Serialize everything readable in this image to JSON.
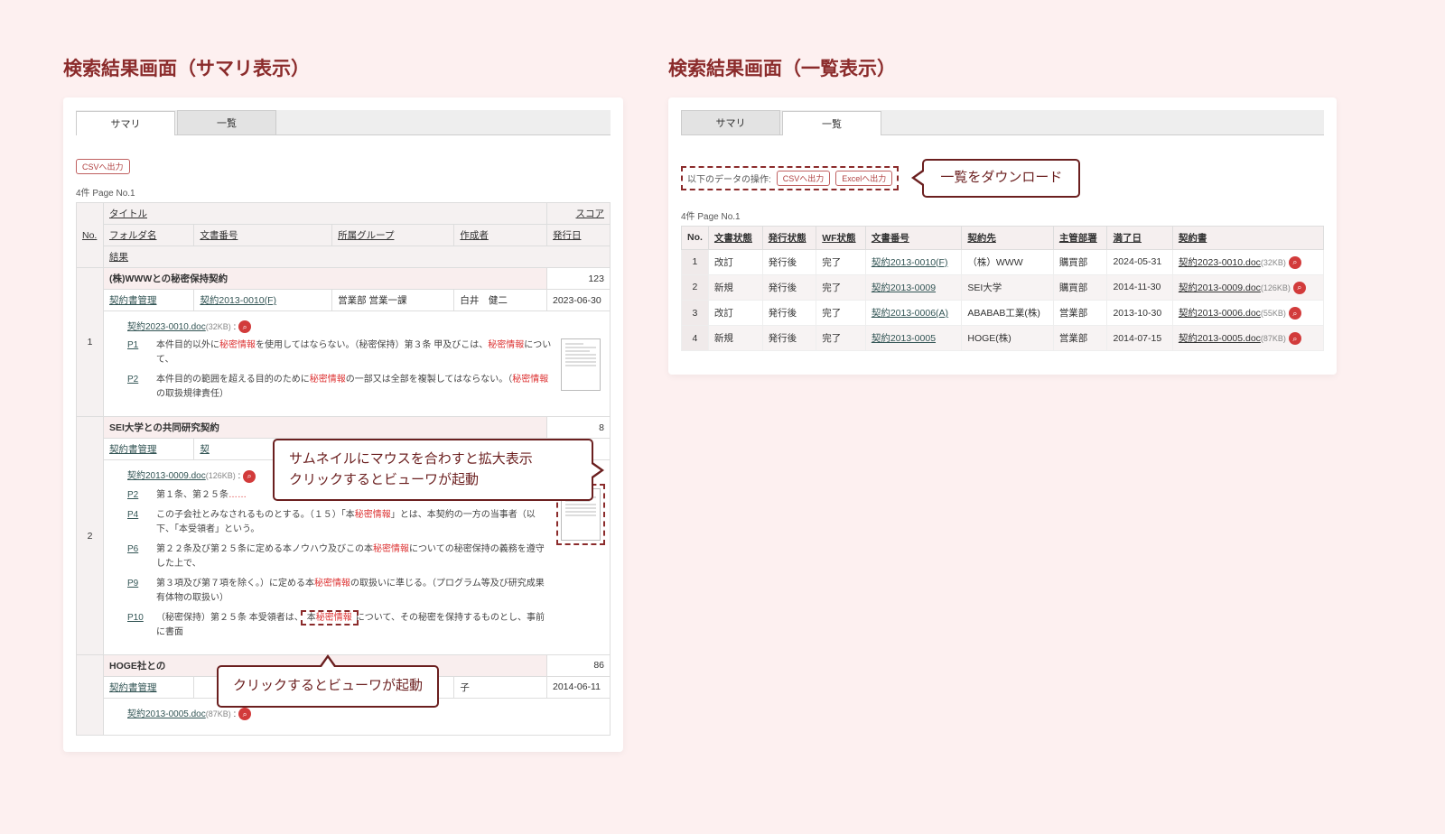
{
  "colors": {
    "page_bg": "#fdf0f0",
    "heading": "#8b2b2b",
    "callout_border": "#6b1f1f",
    "highlight": "#d33",
    "magnifier_bg": "#d23b3b",
    "button_border": "#c06060"
  },
  "left": {
    "heading": "検索結果画面（サマリ表示）",
    "tabs": {
      "summary": "サマリ",
      "list": "一覧",
      "active": "summary"
    },
    "btn_csv": "CSVへ出力",
    "pageinfo": "4件 Page No.1",
    "header_row1": {
      "no": "No.",
      "title": "タイトル",
      "score": "スコア"
    },
    "header_row2": {
      "folder": "フォルダ名",
      "docno": "文書番号",
      "group": "所属グループ",
      "creator": "作成者",
      "issuedate": "発行日"
    },
    "header_row3": {
      "result": "結果"
    },
    "items": [
      {
        "no": "1",
        "title": "(株)WWWとの秘密保持契約",
        "score": 123,
        "folder": "契約書管理",
        "docno": "契約2013-0010(F)",
        "group": "営業部 営業一課",
        "creator": "白井　健二",
        "issuedate": "2023-06-30",
        "file": "契約2023-0010.doc",
        "filesize": "(32KB)",
        "snips": [
          {
            "pg": "P1",
            "html": "本件目的以外に<span class='hl'>秘密情報</span>を使用してはならない。（秘密保持）第３条 甲及びこは、<span class='hl'>秘密情報</span>について、"
          },
          {
            "pg": "P2",
            "html": "本件目的の範囲を超える目的のために<span class='hl'>秘密情報</span>の一部又は全部を複製してはならない。（<span class='hl'>秘密情報</span>の取扱規律責任）"
          }
        ],
        "thumb_dashed": false
      },
      {
        "no": "2",
        "title": "SEI大学との共同研究契約",
        "score": "8",
        "folder": "契約書管理",
        "docno": "契",
        "group": "",
        "creator": "",
        "issuedate": "1",
        "file": "契約2013-0009.doc",
        "filesize": "(126KB)",
        "snips": [
          {
            "pg": "P2",
            "html": "第１条、第２５条<span class='hl'>……</span>"
          },
          {
            "pg": "P4",
            "html": "この子会社とみなされるものとする。（１５）「本<span class='hl'>秘密情報</span>」とは、本契約の一方の当事者（以下、「本受領者」という。"
          },
          {
            "pg": "P6",
            "html": "第２２条及び第２５条に定める本ノウハウ及びこの本<span class='hl'>秘密情報</span>についての秘密保持の義務を遵守した上で、"
          },
          {
            "pg": "P9",
            "html": "第３項及び第７項を除く。）に定める本<span class='hl'>秘密情報</span>の取扱いに準じる。（プログラム等及び研究成果有体物の取扱い）"
          },
          {
            "pg": "P10",
            "html": "（秘密保持）第２５条 本受領者は、<span class='mini-dashed'>本<span class='hl'>秘密情報</span></span>について、その秘密を保持するものとし、事前に書面"
          }
        ],
        "thumb_dashed": true
      },
      {
        "no_row": true,
        "title": "HOGE社との",
        "score": 86,
        "folder": "契約書管理",
        "creator": "子",
        "issuedate": "2014-06-11",
        "file": "契約2013-0005.doc",
        "filesize": "(87KB)"
      }
    ],
    "callout_thumb": "サムネイルにマウスを合わすと拡大表示\nクリックするとビューワが起動",
    "callout_viewer": "クリックするとビューワが起動"
  },
  "right": {
    "heading": "検索結果画面（一覧表示）",
    "tabs": {
      "summary": "サマリ",
      "list": "一覧",
      "active": "list"
    },
    "toolbar_prefix": "以下のデータの操作:",
    "btn_csv": "CSVへ出力",
    "btn_excel": "Excelへ出力",
    "callout_download": "一覧をダウンロード",
    "pageinfo": "4件 Page No.1",
    "columns": {
      "no": "No.",
      "doc_status": "文書状態",
      "issue_status": "発行状態",
      "wf_status": "WF状態",
      "docno": "文書番号",
      "partner": "契約先",
      "dept": "主管部署",
      "due": "満了日",
      "contract_doc": "契約書"
    },
    "rows": [
      {
        "no": 1,
        "doc_status": "改訂",
        "issue_status": "発行後",
        "wf_status": "完了",
        "docno": "契約2013-0010(F)",
        "partner": "（株）WWW",
        "dept": "購買部",
        "due": "2024-05-31",
        "doc": "契約2023-0010.doc",
        "size": "(32KB)"
      },
      {
        "no": 2,
        "doc_status": "新規",
        "issue_status": "発行後",
        "wf_status": "完了",
        "docno": "契約2013-0009",
        "partner": "SEI大学",
        "dept": "購買部",
        "due": "2014-11-30",
        "doc": "契約2013-0009.doc",
        "size": "(126KB)"
      },
      {
        "no": 3,
        "doc_status": "改訂",
        "issue_status": "発行後",
        "wf_status": "完了",
        "docno": "契約2013-0006(A)",
        "partner": "ABABAB工業(株)",
        "dept": "営業部",
        "due": "2013-10-30",
        "doc": "契約2013-0006.doc",
        "size": "(55KB)"
      },
      {
        "no": 4,
        "doc_status": "新規",
        "issue_status": "発行後",
        "wf_status": "完了",
        "docno": "契約2013-0005",
        "partner": "HOGE(株)",
        "dept": "営業部",
        "due": "2014-07-15",
        "doc": "契約2013-0005.doc",
        "size": "(87KB)"
      }
    ]
  }
}
